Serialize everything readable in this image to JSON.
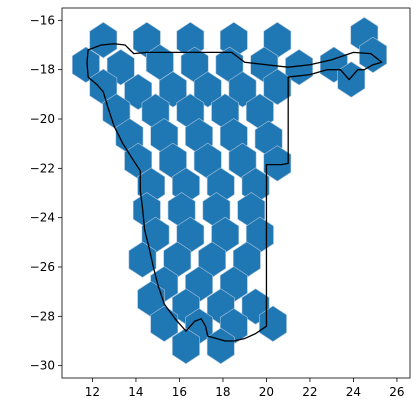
{
  "chart_data": {
    "type": "hexbin-map",
    "title": "",
    "xlabel": "",
    "ylabel": "",
    "xlim": [
      10.6,
      26.6
    ],
    "ylim": [
      -30.5,
      -15.5
    ],
    "x_ticks": [
      12,
      14,
      16,
      18,
      20,
      22,
      24,
      26
    ],
    "y_ticks": [
      -16,
      -18,
      -20,
      -22,
      -24,
      -26,
      -28,
      -30
    ],
    "x_tick_labels": [
      "12",
      "14",
      "16",
      "18",
      "20",
      "22",
      "24",
      "26"
    ],
    "y_tick_labels": [
      "−16",
      "−18",
      "−20",
      "−22",
      "−24",
      "−26",
      "−28",
      "−30"
    ],
    "grid": false,
    "hex_color": "#1f77b4",
    "hex_edge_color": "#a9c3dc",
    "outline_color": "#000000",
    "hex_radius": 0.72,
    "hex_centers": [
      [
        12.5,
        -16.8
      ],
      [
        14.5,
        -16.8
      ],
      [
        16.5,
        -16.8
      ],
      [
        18.5,
        -16.8
      ],
      [
        20.5,
        -16.8
      ],
      [
        24.5,
        -16.6
      ],
      [
        11.7,
        -17.8
      ],
      [
        13.3,
        -17.9
      ],
      [
        15.1,
        -17.7
      ],
      [
        16.7,
        -17.8
      ],
      [
        18.3,
        -17.8
      ],
      [
        19.9,
        -17.8
      ],
      [
        21.5,
        -17.9
      ],
      [
        23.1,
        -17.8
      ],
      [
        24.9,
        -17.4
      ],
      [
        12.5,
        -18.7
      ],
      [
        14.1,
        -18.9
      ],
      [
        15.7,
        -18.8
      ],
      [
        17.3,
        -18.8
      ],
      [
        18.9,
        -18.8
      ],
      [
        20.5,
        -18.7
      ],
      [
        23.9,
        -18.4
      ],
      [
        13.1,
        -19.7
      ],
      [
        14.9,
        -19.7
      ],
      [
        16.5,
        -19.7
      ],
      [
        18.1,
        -19.7
      ],
      [
        19.7,
        -19.7
      ],
      [
        13.7,
        -20.7
      ],
      [
        15.3,
        -20.7
      ],
      [
        16.9,
        -20.7
      ],
      [
        18.5,
        -20.7
      ],
      [
        20.1,
        -20.8
      ],
      [
        14.1,
        -21.7
      ],
      [
        15.7,
        -21.7
      ],
      [
        17.3,
        -21.7
      ],
      [
        18.9,
        -21.7
      ],
      [
        20.5,
        -21.8
      ],
      [
        14.7,
        -22.7
      ],
      [
        16.3,
        -22.7
      ],
      [
        17.9,
        -22.7
      ],
      [
        19.5,
        -22.7
      ],
      [
        14.5,
        -23.7
      ],
      [
        16.1,
        -23.7
      ],
      [
        17.7,
        -23.7
      ],
      [
        19.3,
        -23.7
      ],
      [
        14.9,
        -24.7
      ],
      [
        16.5,
        -24.7
      ],
      [
        18.1,
        -24.7
      ],
      [
        19.7,
        -24.7
      ],
      [
        14.3,
        -25.7
      ],
      [
        15.9,
        -25.7
      ],
      [
        17.5,
        -25.7
      ],
      [
        19.1,
        -25.7
      ],
      [
        15.3,
        -26.7
      ],
      [
        16.9,
        -26.7
      ],
      [
        18.5,
        -26.7
      ],
      [
        14.7,
        -27.3
      ],
      [
        16.3,
        -27.6
      ],
      [
        17.9,
        -27.6
      ],
      [
        19.5,
        -27.6
      ],
      [
        15.3,
        -28.3
      ],
      [
        16.9,
        -28.4
      ],
      [
        18.5,
        -28.4
      ],
      [
        20.3,
        -28.3
      ],
      [
        16.3,
        -29.2
      ],
      [
        17.9,
        -29.2
      ]
    ],
    "outline": [
      [
        11.8,
        -17.2
      ],
      [
        12.4,
        -17.0
      ],
      [
        13.0,
        -16.95
      ],
      [
        13.5,
        -17.0
      ],
      [
        13.9,
        -17.35
      ],
      [
        14.5,
        -17.3
      ],
      [
        15.5,
        -17.3
      ],
      [
        16.5,
        -17.3
      ],
      [
        17.5,
        -17.3
      ],
      [
        18.4,
        -17.3
      ],
      [
        19.0,
        -17.7
      ],
      [
        20.0,
        -17.8
      ],
      [
        21.0,
        -17.9
      ],
      [
        22.0,
        -17.8
      ],
      [
        23.0,
        -17.6
      ],
      [
        24.0,
        -17.3
      ],
      [
        24.8,
        -17.35
      ],
      [
        25.3,
        -17.7
      ],
      [
        24.9,
        -17.8
      ],
      [
        24.5,
        -18.0
      ],
      [
        24.2,
        -18.0
      ],
      [
        23.8,
        -18.4
      ],
      [
        23.4,
        -18.0
      ],
      [
        22.8,
        -18.0
      ],
      [
        22.0,
        -18.2
      ],
      [
        21.0,
        -18.3
      ],
      [
        21.0,
        -18.8
      ],
      [
        21.0,
        -19.5
      ],
      [
        21.0,
        -20.5
      ],
      [
        21.0,
        -21.8
      ],
      [
        20.7,
        -21.85
      ],
      [
        20.0,
        -21.85
      ],
      [
        20.0,
        -22.5
      ],
      [
        20.0,
        -23.5
      ],
      [
        20.0,
        -24.5
      ],
      [
        20.0,
        -25.5
      ],
      [
        20.0,
        -26.5
      ],
      [
        20.0,
        -27.5
      ],
      [
        20.0,
        -28.4
      ],
      [
        19.5,
        -28.7
      ],
      [
        19.0,
        -28.9
      ],
      [
        18.5,
        -29.0
      ],
      [
        18.1,
        -29.0
      ],
      [
        17.7,
        -28.9
      ],
      [
        17.3,
        -28.8
      ],
      [
        17.2,
        -28.4
      ],
      [
        17.0,
        -28.1
      ],
      [
        16.7,
        -28.2
      ],
      [
        16.3,
        -28.6
      ],
      [
        15.8,
        -28.1
      ],
      [
        15.3,
        -27.5
      ],
      [
        15.0,
        -26.7
      ],
      [
        14.8,
        -26.0
      ],
      [
        14.6,
        -25.2
      ],
      [
        14.4,
        -24.5
      ],
      [
        14.3,
        -23.6
      ],
      [
        14.2,
        -22.9
      ],
      [
        14.2,
        -22.1
      ],
      [
        13.9,
        -21.7
      ],
      [
        13.4,
        -21.0
      ],
      [
        13.0,
        -20.3
      ],
      [
        12.7,
        -19.5
      ],
      [
        12.5,
        -18.9
      ],
      [
        12.2,
        -18.6
      ],
      [
        11.8,
        -18.3
      ],
      [
        11.75,
        -17.7
      ],
      [
        11.8,
        -17.2
      ]
    ]
  }
}
